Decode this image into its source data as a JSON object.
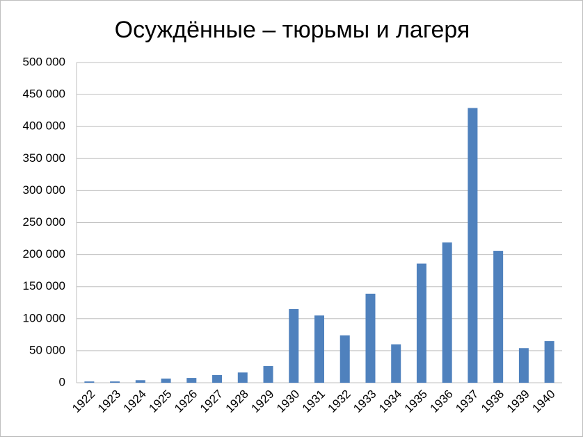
{
  "chart_data": {
    "type": "bar",
    "title": "Осуждённые – тюрьмы и лагеря",
    "categories": [
      "1922",
      "1923",
      "1924",
      "1925",
      "1926",
      "1927",
      "1928",
      "1929",
      "1930",
      "1931",
      "1932",
      "1933",
      "1934",
      "1935",
      "1936",
      "1937",
      "1938",
      "1939",
      "1940"
    ],
    "values": [
      2000,
      2000,
      4000,
      6500,
      7500,
      12000,
      16000,
      26000,
      115000,
      105000,
      74000,
      139000,
      60000,
      186000,
      219000,
      429000,
      206000,
      54000,
      65000
    ],
    "color": "#4f81bd",
    "ylim": [
      0,
      500000
    ],
    "yticks": [
      0,
      {
        "value": 50000,
        "label": "50 000"
      },
      {
        "value": 100000,
        "label": "100 000"
      },
      {
        "value": 150000,
        "label": "150 000"
      },
      {
        "value": 200000,
        "label": "200 000"
      },
      {
        "value": 250000,
        "label": "250 000"
      },
      {
        "value": 300000,
        "label": "300 000"
      },
      {
        "value": 350000,
        "label": "350 000"
      },
      {
        "value": 400000,
        "label": "400 000"
      },
      {
        "value": 450000,
        "label": "450 000"
      },
      {
        "value": 500000,
        "label": "500 000"
      }
    ],
    "grid": true
  }
}
